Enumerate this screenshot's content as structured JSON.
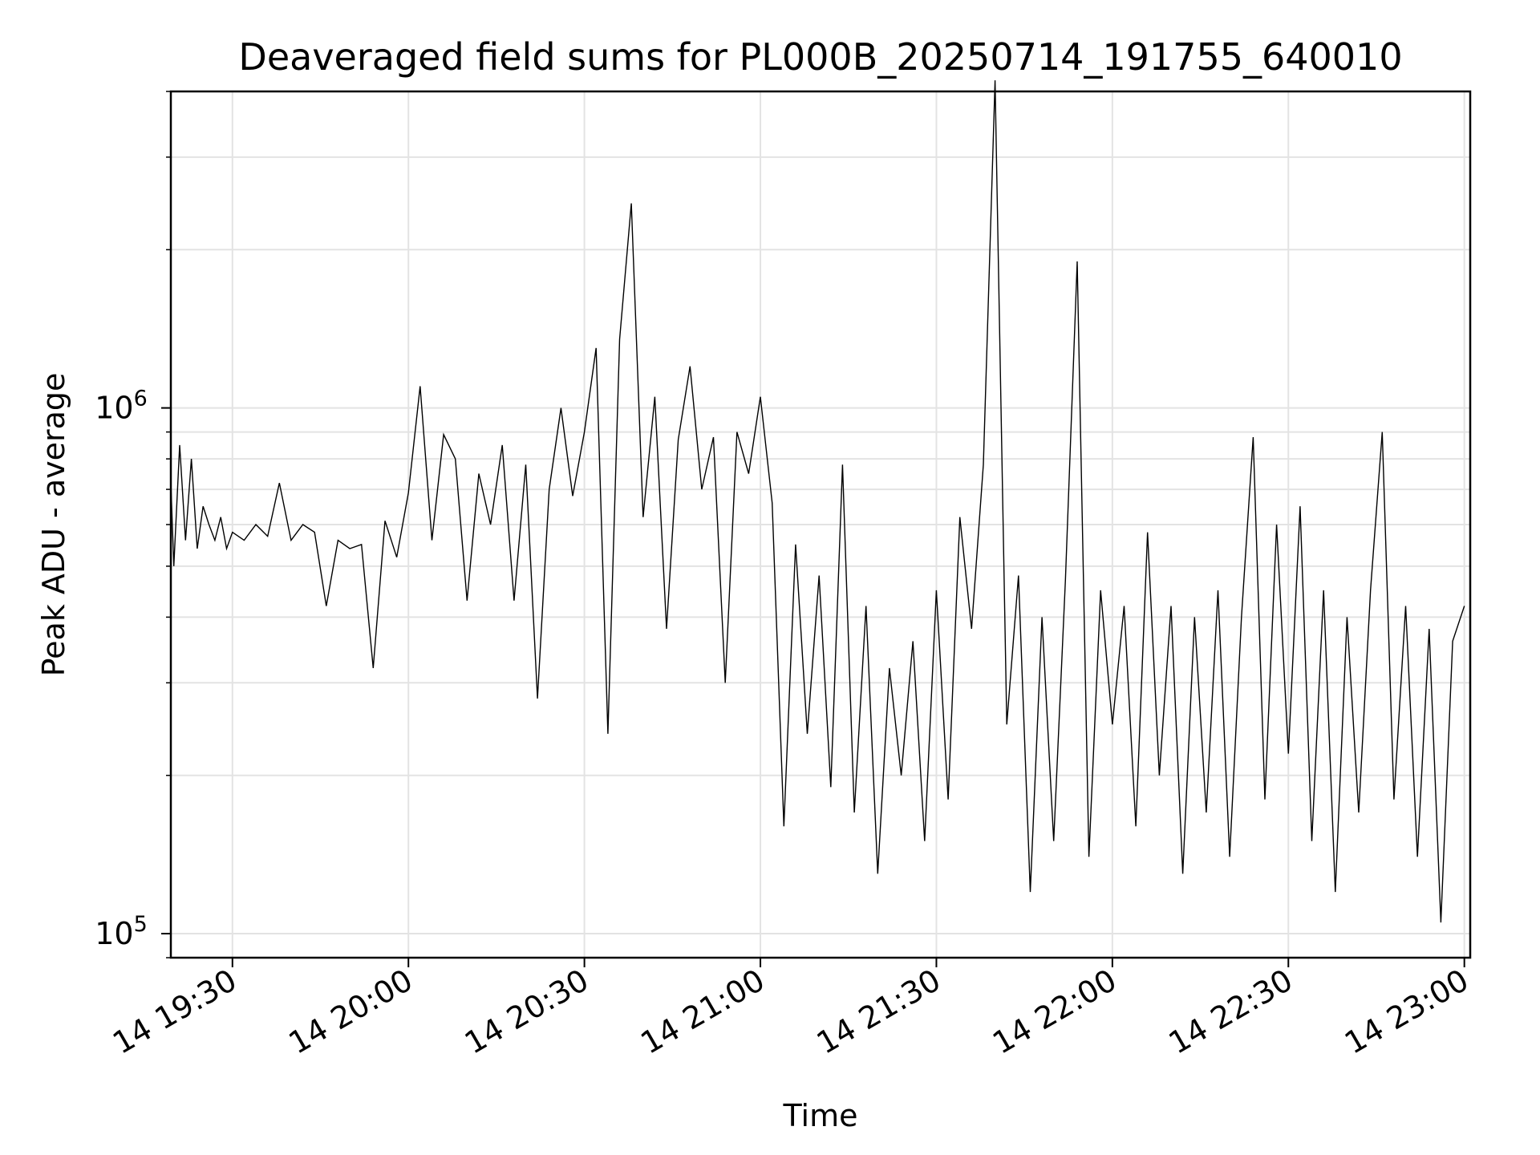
{
  "chart_data": {
    "type": "line",
    "title": "Deaveraged field sums for PL000B_20250714_191755_640010",
    "xlabel": "Time",
    "ylabel": "Peak ADU - average",
    "yscale": "log",
    "ylim": [
      90000,
      4000000
    ],
    "xlim": [
      "2025-07-14 19:19:30",
      "2025-07-14 23:01:00"
    ],
    "grid": true,
    "x_ticks": [
      {
        "t": "2025-07-14 19:30",
        "label": "14 19:30"
      },
      {
        "t": "2025-07-14 20:00",
        "label": "14 20:00"
      },
      {
        "t": "2025-07-14 20:30",
        "label": "14 20:30"
      },
      {
        "t": "2025-07-14 21:00",
        "label": "14 21:00"
      },
      {
        "t": "2025-07-14 21:30",
        "label": "14 21:30"
      },
      {
        "t": "2025-07-14 22:00",
        "label": "14 22:00"
      },
      {
        "t": "2025-07-14 22:30",
        "label": "14 22:30"
      },
      {
        "t": "2025-07-14 23:00",
        "label": "14 23:00"
      }
    ],
    "y_ticks": [
      {
        "value": 100000,
        "base": "10",
        "exp": "5"
      },
      {
        "value": 1000000,
        "base": "10",
        "exp": "6"
      }
    ],
    "series": [
      {
        "color": "#000000",
        "points": [
          [
            "2025-07-14 19:19:30",
            720000
          ],
          [
            "2025-07-14 19:20:00",
            500000
          ],
          [
            "2025-07-14 19:21:00",
            850000
          ],
          [
            "2025-07-14 19:22:00",
            560000
          ],
          [
            "2025-07-14 19:23:00",
            800000
          ],
          [
            "2025-07-14 19:24:00",
            540000
          ],
          [
            "2025-07-14 19:25:00",
            650000
          ],
          [
            "2025-07-14 19:26:00",
            600000
          ],
          [
            "2025-07-14 19:27:00",
            560000
          ],
          [
            "2025-07-14 19:28:00",
            620000
          ],
          [
            "2025-07-14 19:29:00",
            540000
          ],
          [
            "2025-07-14 19:30:00",
            580000
          ],
          [
            "2025-07-14 19:32:00",
            560000
          ],
          [
            "2025-07-14 19:34:00",
            600000
          ],
          [
            "2025-07-14 19:36:00",
            570000
          ],
          [
            "2025-07-14 19:38:00",
            720000
          ],
          [
            "2025-07-14 19:40:00",
            560000
          ],
          [
            "2025-07-14 19:42:00",
            600000
          ],
          [
            "2025-07-14 19:44:00",
            580000
          ],
          [
            "2025-07-14 19:46:00",
            420000
          ],
          [
            "2025-07-14 19:48:00",
            560000
          ],
          [
            "2025-07-14 19:50:00",
            540000
          ],
          [
            "2025-07-14 19:52:00",
            550000
          ],
          [
            "2025-07-14 19:54:00",
            320000
          ],
          [
            "2025-07-14 19:56:00",
            610000
          ],
          [
            "2025-07-14 19:58:00",
            520000
          ],
          [
            "2025-07-14 20:00:00",
            690000
          ],
          [
            "2025-07-14 20:02:00",
            1100000
          ],
          [
            "2025-07-14 20:04:00",
            560000
          ],
          [
            "2025-07-14 20:06:00",
            890000
          ],
          [
            "2025-07-14 20:08:00",
            800000
          ],
          [
            "2025-07-14 20:10:00",
            430000
          ],
          [
            "2025-07-14 20:12:00",
            750000
          ],
          [
            "2025-07-14 20:14:00",
            600000
          ],
          [
            "2025-07-14 20:16:00",
            850000
          ],
          [
            "2025-07-14 20:18:00",
            430000
          ],
          [
            "2025-07-14 20:20:00",
            780000
          ],
          [
            "2025-07-14 20:22:00",
            280000
          ],
          [
            "2025-07-14 20:24:00",
            700000
          ],
          [
            "2025-07-14 20:26:00",
            1000000
          ],
          [
            "2025-07-14 20:28:00",
            680000
          ],
          [
            "2025-07-14 20:30:00",
            900000
          ],
          [
            "2025-07-14 20:32:00",
            1300000
          ],
          [
            "2025-07-14 20:34:00",
            240000
          ],
          [
            "2025-07-14 20:36:00",
            1350000
          ],
          [
            "2025-07-14 20:38:00",
            2450000
          ],
          [
            "2025-07-14 20:40:00",
            620000
          ],
          [
            "2025-07-14 20:42:00",
            1050000
          ],
          [
            "2025-07-14 20:44:00",
            380000
          ],
          [
            "2025-07-14 20:46:00",
            870000
          ],
          [
            "2025-07-14 20:48:00",
            1200000
          ],
          [
            "2025-07-14 20:50:00",
            700000
          ],
          [
            "2025-07-14 20:52:00",
            880000
          ],
          [
            "2025-07-14 20:54:00",
            300000
          ],
          [
            "2025-07-14 20:56:00",
            900000
          ],
          [
            "2025-07-14 20:58:00",
            750000
          ],
          [
            "2025-07-14 21:00:00",
            1050000
          ],
          [
            "2025-07-14 21:02:00",
            660000
          ],
          [
            "2025-07-14 21:04:00",
            160000
          ],
          [
            "2025-07-14 21:06:00",
            550000
          ],
          [
            "2025-07-14 21:08:00",
            240000
          ],
          [
            "2025-07-14 21:10:00",
            480000
          ],
          [
            "2025-07-14 21:12:00",
            190000
          ],
          [
            "2025-07-14 21:14:00",
            780000
          ],
          [
            "2025-07-14 21:16:00",
            170000
          ],
          [
            "2025-07-14 21:18:00",
            420000
          ],
          [
            "2025-07-14 21:20:00",
            130000
          ],
          [
            "2025-07-14 21:22:00",
            320000
          ],
          [
            "2025-07-14 21:24:00",
            200000
          ],
          [
            "2025-07-14 21:26:00",
            360000
          ],
          [
            "2025-07-14 21:28:00",
            150000
          ],
          [
            "2025-07-14 21:30:00",
            450000
          ],
          [
            "2025-07-14 21:32:00",
            180000
          ],
          [
            "2025-07-14 21:34:00",
            620000
          ],
          [
            "2025-07-14 21:36:00",
            380000
          ],
          [
            "2025-07-14 21:38:00",
            780000
          ],
          [
            "2025-07-14 21:40:00",
            4200000
          ],
          [
            "2025-07-14 21:42:00",
            250000
          ],
          [
            "2025-07-14 21:44:00",
            480000
          ],
          [
            "2025-07-14 21:46:00",
            120000
          ],
          [
            "2025-07-14 21:48:00",
            400000
          ],
          [
            "2025-07-14 21:50:00",
            150000
          ],
          [
            "2025-07-14 21:52:00",
            470000
          ],
          [
            "2025-07-14 21:54:00",
            1900000
          ],
          [
            "2025-07-14 21:56:00",
            140000
          ],
          [
            "2025-07-14 21:58:00",
            450000
          ],
          [
            "2025-07-14 22:00:00",
            250000
          ],
          [
            "2025-07-14 22:02:00",
            420000
          ],
          [
            "2025-07-14 22:04:00",
            160000
          ],
          [
            "2025-07-14 22:06:00",
            580000
          ],
          [
            "2025-07-14 22:08:00",
            200000
          ],
          [
            "2025-07-14 22:10:00",
            420000
          ],
          [
            "2025-07-14 22:12:00",
            130000
          ],
          [
            "2025-07-14 22:14:00",
            400000
          ],
          [
            "2025-07-14 22:16:00",
            170000
          ],
          [
            "2025-07-14 22:18:00",
            450000
          ],
          [
            "2025-07-14 22:20:00",
            140000
          ],
          [
            "2025-07-14 22:22:00",
            400000
          ],
          [
            "2025-07-14 22:24:00",
            880000
          ],
          [
            "2025-07-14 22:26:00",
            180000
          ],
          [
            "2025-07-14 22:28:00",
            600000
          ],
          [
            "2025-07-14 22:30:00",
            220000
          ],
          [
            "2025-07-14 22:32:00",
            650000
          ],
          [
            "2025-07-14 22:34:00",
            150000
          ],
          [
            "2025-07-14 22:36:00",
            450000
          ],
          [
            "2025-07-14 22:38:00",
            120000
          ],
          [
            "2025-07-14 22:40:00",
            400000
          ],
          [
            "2025-07-14 22:42:00",
            170000
          ],
          [
            "2025-07-14 22:44:00",
            450000
          ],
          [
            "2025-07-14 22:46:00",
            900000
          ],
          [
            "2025-07-14 22:48:00",
            180000
          ],
          [
            "2025-07-14 22:50:00",
            420000
          ],
          [
            "2025-07-14 22:52:00",
            140000
          ],
          [
            "2025-07-14 22:54:00",
            380000
          ],
          [
            "2025-07-14 22:56:00",
            105000
          ],
          [
            "2025-07-14 22:58:00",
            360000
          ],
          [
            "2025-07-14 23:00:00",
            420000
          ]
        ]
      }
    ]
  }
}
